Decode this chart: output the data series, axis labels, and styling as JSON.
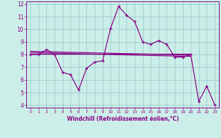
{
  "xlabel": "Windchill (Refroidissement éolien,°C)",
  "xlim": [
    -0.5,
    23.5
  ],
  "ylim": [
    3.8,
    12.2
  ],
  "yticks": [
    4,
    5,
    6,
    7,
    8,
    9,
    10,
    11,
    12
  ],
  "xticks": [
    0,
    1,
    2,
    3,
    4,
    5,
    6,
    7,
    8,
    9,
    10,
    11,
    12,
    13,
    14,
    15,
    16,
    17,
    18,
    19,
    20,
    21,
    22,
    23
  ],
  "background_color": "#cceee8",
  "grid_color": "#99cccc",
  "line_color": "#880088",
  "series1_x": [
    0,
    1,
    2,
    3,
    4,
    5,
    6,
    7,
    8,
    9,
    10,
    11,
    12,
    13,
    14,
    15,
    16,
    17,
    18,
    19,
    20,
    21,
    22,
    23
  ],
  "series1_y": [
    8.0,
    8.0,
    8.4,
    8.0,
    6.6,
    6.4,
    5.2,
    6.9,
    7.4,
    7.5,
    10.1,
    11.8,
    11.1,
    10.6,
    9.0,
    8.8,
    9.1,
    8.8,
    7.8,
    7.8,
    8.0,
    4.3,
    5.5,
    4.0
  ],
  "series2_x": [
    0,
    20
  ],
  "series2_y": [
    8.05,
    8.05
  ],
  "series3_x": [
    0,
    20
  ],
  "series3_y": [
    8.15,
    7.85
  ],
  "series4_x": [
    0,
    20
  ],
  "series4_y": [
    8.25,
    7.95
  ]
}
